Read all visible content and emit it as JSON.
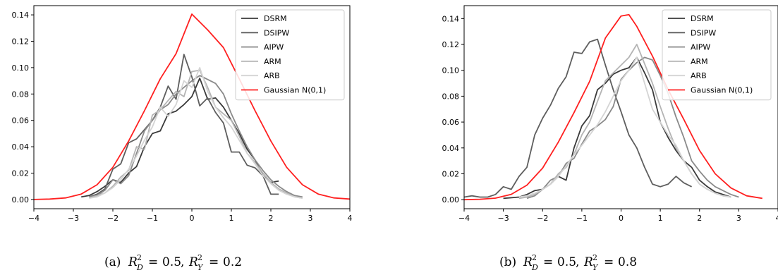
{
  "chart_data": [
    {
      "type": "line",
      "caption": {
        "tag": "(a)",
        "d_value": "0.5",
        "y_value": "0.2"
      },
      "xlim": [
        -4,
        4
      ],
      "ylim": [
        -0.007,
        0.147
      ],
      "xticks": [
        -4,
        -3,
        -2,
        -1,
        0,
        1,
        2,
        3,
        4
      ],
      "yticks": [
        0.0,
        0.02,
        0.04,
        0.06,
        0.08,
        0.1,
        0.12,
        0.14
      ],
      "legend_position": "upper right",
      "series": [
        {
          "name": "DSRM",
          "color": "#3a3a3a",
          "x": [
            -2.8,
            -2.6,
            -2.4,
            -2.2,
            -2.0,
            -1.8,
            -1.6,
            -1.4,
            -1.2,
            -1.0,
            -0.8,
            -0.6,
            -0.4,
            -0.2,
            0.0,
            0.2,
            0.4,
            0.6,
            0.8,
            1.0,
            1.2,
            1.4,
            1.6,
            1.8,
            2.0,
            2.2
          ],
          "y": [
            0.002,
            0.003,
            0.006,
            0.01,
            0.015,
            0.013,
            0.02,
            0.025,
            0.04,
            0.05,
            0.052,
            0.065,
            0.067,
            0.072,
            0.078,
            0.092,
            0.076,
            0.077,
            0.07,
            0.06,
            0.05,
            0.038,
            0.03,
            0.018,
            0.013,
            0.014
          ]
        },
        {
          "name": "DSIPW",
          "color": "#5e5e5e",
          "x": [
            -2.6,
            -2.4,
            -2.2,
            -2.0,
            -1.8,
            -1.6,
            -1.4,
            -1.2,
            -1.0,
            -0.8,
            -0.6,
            -0.4,
            -0.2,
            0.0,
            0.2,
            0.4,
            0.6,
            0.8,
            1.0,
            1.2,
            1.4,
            1.6,
            1.8,
            2.0,
            2.2
          ],
          "y": [
            0.002,
            0.004,
            0.008,
            0.023,
            0.027,
            0.043,
            0.046,
            0.053,
            0.06,
            0.07,
            0.086,
            0.076,
            0.11,
            0.093,
            0.071,
            0.077,
            0.066,
            0.058,
            0.036,
            0.036,
            0.026,
            0.024,
            0.018,
            0.004,
            0.004
          ]
        },
        {
          "name": "AIPW",
          "color": "#8a8a8a",
          "x": [
            -2.6,
            -2.4,
            -2.2,
            -2.0,
            -1.8,
            -1.6,
            -1.4,
            -1.2,
            -1.0,
            -0.8,
            -0.6,
            -0.4,
            -0.2,
            0.0,
            0.2,
            0.4,
            0.6,
            0.8,
            1.0,
            1.2,
            1.4,
            1.6,
            1.8,
            2.0,
            2.2,
            2.4,
            2.6,
            2.8
          ],
          "y": [
            0.002,
            0.003,
            0.007,
            0.015,
            0.012,
            0.018,
            0.035,
            0.052,
            0.06,
            0.068,
            0.072,
            0.08,
            0.085,
            0.09,
            0.094,
            0.091,
            0.088,
            0.08,
            0.065,
            0.052,
            0.04,
            0.03,
            0.022,
            0.015,
            0.01,
            0.006,
            0.003,
            0.002
          ]
        },
        {
          "name": "ARM",
          "color": "#b4b4b4",
          "x": [
            -2.6,
            -2.4,
            -2.2,
            -2.0,
            -1.8,
            -1.6,
            -1.4,
            -1.2,
            -1.0,
            -0.8,
            -0.6,
            -0.4,
            -0.2,
            0.0,
            0.2,
            0.4,
            0.6,
            0.8,
            1.0,
            1.2,
            1.4,
            1.6,
            1.8,
            2.0,
            2.2,
            2.4,
            2.6,
            2.8
          ],
          "y": [
            0.001,
            0.003,
            0.005,
            0.01,
            0.017,
            0.022,
            0.04,
            0.038,
            0.064,
            0.068,
            0.075,
            0.082,
            0.078,
            0.097,
            0.098,
            0.085,
            0.07,
            0.065,
            0.06,
            0.048,
            0.035,
            0.028,
            0.02,
            0.013,
            0.008,
            0.005,
            0.002,
            0.001
          ]
        },
        {
          "name": "ARB",
          "color": "#d4d4d4",
          "x": [
            -2.6,
            -2.4,
            -2.2,
            -2.0,
            -1.8,
            -1.6,
            -1.4,
            -1.2,
            -1.0,
            -0.8,
            -0.6,
            -0.4,
            -0.2,
            0.0,
            0.2,
            0.4,
            0.6,
            0.8,
            1.0,
            1.2,
            1.4,
            1.6,
            1.8,
            2.0,
            2.2,
            2.4,
            2.6,
            2.8
          ],
          "y": [
            0.001,
            0.002,
            0.005,
            0.009,
            0.015,
            0.023,
            0.033,
            0.045,
            0.055,
            0.07,
            0.063,
            0.072,
            0.09,
            0.085,
            0.1,
            0.082,
            0.07,
            0.062,
            0.055,
            0.045,
            0.035,
            0.027,
            0.018,
            0.012,
            0.007,
            0.004,
            0.002,
            0.001
          ]
        },
        {
          "name": "Gaussian N(0,1)",
          "color": "#ff2020",
          "x": [
            -4.0,
            -3.6,
            -3.2,
            -2.8,
            -2.4,
            -2.0,
            -1.6,
            -1.2,
            -0.8,
            -0.4,
            0.0,
            0.4,
            0.8,
            1.2,
            1.6,
            2.0,
            2.4,
            2.8,
            3.2,
            3.6,
            4.0
          ],
          "y": [
            0.0,
            0.0003,
            0.0012,
            0.0041,
            0.0112,
            0.0244,
            0.0444,
            0.0673,
            0.0915,
            0.1106,
            0.1406,
            0.1286,
            0.1152,
            0.0915,
            0.0673,
            0.0444,
            0.0244,
            0.0112,
            0.0041,
            0.0012,
            0.0003
          ]
        }
      ]
    },
    {
      "type": "line",
      "caption": {
        "tag": "(b)",
        "d_value": "0.5",
        "y_value": "0.8"
      },
      "xlim": [
        -4,
        4
      ],
      "ylim": [
        -0.007,
        0.15
      ],
      "xticks": [
        -4,
        -3,
        -2,
        -1,
        0,
        1,
        2,
        3,
        4
      ],
      "yticks": [
        0.0,
        0.02,
        0.04,
        0.06,
        0.08,
        0.1,
        0.12,
        0.14
      ],
      "legend_position": "upper right",
      "series": [
        {
          "name": "DSRM",
          "color": "#3a3a3a",
          "x": [
            -3.0,
            -2.6,
            -2.4,
            -2.2,
            -2.0,
            -1.8,
            -1.6,
            -1.4,
            -1.2,
            -1.0,
            -0.8,
            -0.6,
            -0.4,
            -0.2,
            0.0,
            0.2,
            0.4,
            0.6,
            0.8,
            1.0,
            1.2,
            1.4,
            1.6,
            1.8,
            2.0,
            2.2,
            2.4,
            2.6,
            2.8
          ],
          "y": [
            0.001,
            0.002,
            0.004,
            0.007,
            0.008,
            0.012,
            0.018,
            0.015,
            0.04,
            0.057,
            0.065,
            0.085,
            0.09,
            0.097,
            0.1,
            0.102,
            0.11,
            0.098,
            0.085,
            0.06,
            0.048,
            0.038,
            0.03,
            0.025,
            0.015,
            0.01,
            0.006,
            0.004,
            0.002
          ]
        },
        {
          "name": "DSIPW",
          "color": "#5e5e5e",
          "x": [
            -4.0,
            -3.8,
            -3.6,
            -3.4,
            -3.2,
            -3.0,
            -2.8,
            -2.6,
            -2.4,
            -2.2,
            -2.0,
            -1.8,
            -1.6,
            -1.4,
            -1.2,
            -1.0,
            -0.8,
            -0.6,
            -0.4,
            -0.2,
            0.0,
            0.2,
            0.4,
            0.6,
            0.8,
            1.0,
            1.2,
            1.4,
            1.6,
            1.8
          ],
          "y": [
            0.002,
            0.003,
            0.002,
            0.002,
            0.004,
            0.01,
            0.008,
            0.018,
            0.025,
            0.05,
            0.063,
            0.073,
            0.086,
            0.095,
            0.114,
            0.113,
            0.122,
            0.124,
            0.104,
            0.085,
            0.068,
            0.05,
            0.04,
            0.025,
            0.012,
            0.01,
            0.012,
            0.018,
            0.013,
            0.01
          ]
        },
        {
          "name": "AIPW",
          "color": "#8a8a8a",
          "x": [
            -2.4,
            -2.2,
            -2.0,
            -1.8,
            -1.6,
            -1.4,
            -1.2,
            -1.0,
            -0.8,
            -0.6,
            -0.4,
            -0.2,
            0.0,
            0.2,
            0.4,
            0.6,
            0.8,
            1.0,
            1.2,
            1.4,
            1.6,
            1.8,
            2.0,
            2.2,
            2.4,
            2.6,
            2.8,
            3.0
          ],
          "y": [
            0.001,
            0.003,
            0.008,
            0.015,
            0.018,
            0.028,
            0.032,
            0.043,
            0.053,
            0.057,
            0.062,
            0.072,
            0.093,
            0.1,
            0.106,
            0.11,
            0.108,
            0.096,
            0.082,
            0.064,
            0.048,
            0.03,
            0.022,
            0.015,
            0.01,
            0.007,
            0.004,
            0.002
          ]
        },
        {
          "name": "ARM",
          "color": "#b4b4b4",
          "x": [
            -2.6,
            -2.4,
            -2.2,
            -2.0,
            -1.8,
            -1.6,
            -1.4,
            -1.2,
            -1.0,
            -0.8,
            -0.6,
            -0.4,
            -0.2,
            0.0,
            0.2,
            0.4,
            0.6,
            0.8,
            1.0,
            1.2,
            1.4,
            1.6,
            1.8,
            2.0,
            2.2,
            2.4,
            2.6,
            2.8
          ],
          "y": [
            0.001,
            0.002,
            0.004,
            0.008,
            0.012,
            0.02,
            0.025,
            0.035,
            0.05,
            0.06,
            0.076,
            0.092,
            0.098,
            0.104,
            0.11,
            0.12,
            0.105,
            0.09,
            0.072,
            0.055,
            0.04,
            0.03,
            0.02,
            0.012,
            0.008,
            0.005,
            0.003,
            0.002
          ]
        },
        {
          "name": "ARB",
          "color": "#d4d4d4",
          "x": [
            -2.6,
            -2.4,
            -2.2,
            -2.0,
            -1.8,
            -1.6,
            -1.4,
            -1.2,
            -1.0,
            -0.8,
            -0.6,
            -0.4,
            -0.2,
            0.0,
            0.2,
            0.4,
            0.6,
            0.8,
            1.0,
            1.2,
            1.4,
            1.6,
            1.8,
            2.0,
            2.2,
            2.4,
            2.6,
            2.8
          ],
          "y": [
            0.002,
            0.003,
            0.005,
            0.008,
            0.012,
            0.018,
            0.026,
            0.035,
            0.042,
            0.05,
            0.058,
            0.068,
            0.08,
            0.092,
            0.1,
            0.11,
            0.09,
            0.07,
            0.06,
            0.05,
            0.042,
            0.03,
            0.02,
            0.012,
            0.008,
            0.005,
            0.003,
            0.002
          ]
        },
        {
          "name": "Gaussian N(0,1)",
          "color": "#ff2020",
          "x": [
            -4.0,
            -3.6,
            -3.2,
            -2.8,
            -2.4,
            -2.0,
            -1.6,
            -1.2,
            -0.8,
            -0.4,
            -0.2,
            0.0,
            0.2,
            0.4,
            0.8,
            1.2,
            1.6,
            2.0,
            2.4,
            2.8,
            3.2,
            3.6
          ],
          "y": [
            0.0,
            0.0003,
            0.0012,
            0.0041,
            0.0112,
            0.0244,
            0.0444,
            0.0673,
            0.0915,
            0.125,
            0.1335,
            0.142,
            0.143,
            0.134,
            0.111,
            0.085,
            0.062,
            0.038,
            0.02,
            0.009,
            0.003,
            0.001
          ]
        }
      ]
    }
  ]
}
